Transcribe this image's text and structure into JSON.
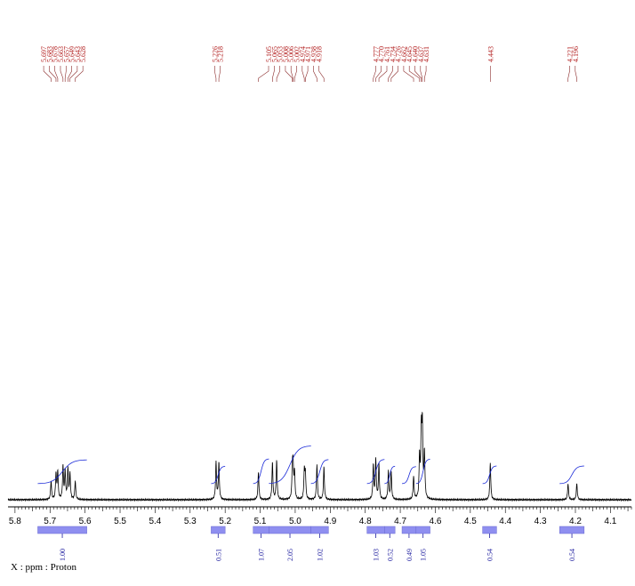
{
  "chart_data": {
    "type": "line",
    "title": "",
    "xlabel": "X : ppm : Proton",
    "ylabel": "",
    "xlim": [
      5.82,
      4.04
    ],
    "x_reversed": true,
    "x_ticks": [
      5.8,
      5.7,
      5.6,
      5.5,
      5.4,
      5.3,
      5.2,
      5.1,
      5.0,
      4.9,
      4.8,
      4.7,
      4.6,
      4.5,
      4.4,
      4.3,
      4.2,
      4.1
    ],
    "x_tick_labels": [
      "5.8",
      "5.7",
      "5.6",
      "5.5",
      "5.4",
      "5.3",
      "5.2",
      "5.1",
      "5.0",
      "4.9",
      "4.8",
      "4.7",
      "4.6",
      "4.5",
      "4.4",
      "4.3",
      "4.2",
      "4.1"
    ],
    "peak_groups": [
      {
        "labels": [
          "5.697",
          "5.683",
          "5.678",
          "5.663",
          "5.657",
          "5.649",
          "5.643",
          "5.628"
        ]
      },
      {
        "labels": [
          "5.226",
          "5.218"
        ]
      },
      {
        "labels": [
          "5.105",
          "5.065",
          "5.053",
          "5.008",
          "5.006",
          "5.002",
          "4.974",
          "4.971",
          "4.938",
          "4.918"
        ]
      },
      {
        "labels": [
          "4.777",
          "4.770",
          "4.761",
          "4.734",
          "4.726",
          "4.662",
          "4.645",
          "4.640",
          "4.637",
          "4.631"
        ]
      },
      {
        "labels": [
          "4.443"
        ]
      },
      {
        "labels": [
          "4.221",
          "4.196"
        ]
      }
    ],
    "signals": [
      {
        "ppm": 5.697,
        "height": 0.08
      },
      {
        "ppm": 5.683,
        "height": 0.11
      },
      {
        "ppm": 5.678,
        "height": 0.12
      },
      {
        "ppm": 5.663,
        "height": 0.14
      },
      {
        "ppm": 5.657,
        "height": 0.12
      },
      {
        "ppm": 5.649,
        "height": 0.13
      },
      {
        "ppm": 5.643,
        "height": 0.11
      },
      {
        "ppm": 5.628,
        "height": 0.08
      },
      {
        "ppm": 5.226,
        "height": 0.16
      },
      {
        "ppm": 5.218,
        "height": 0.16
      },
      {
        "ppm": 5.105,
        "height": 0.12
      },
      {
        "ppm": 5.065,
        "height": 0.16
      },
      {
        "ppm": 5.053,
        "height": 0.17
      },
      {
        "ppm": 5.008,
        "height": 0.13
      },
      {
        "ppm": 5.006,
        "height": 0.12
      },
      {
        "ppm": 5.002,
        "height": 0.11
      },
      {
        "ppm": 4.974,
        "height": 0.12
      },
      {
        "ppm": 4.971,
        "height": 0.11
      },
      {
        "ppm": 4.938,
        "height": 0.15
      },
      {
        "ppm": 4.918,
        "height": 0.14
      },
      {
        "ppm": 4.777,
        "height": 0.15
      },
      {
        "ppm": 4.77,
        "height": 0.17
      },
      {
        "ppm": 4.761,
        "height": 0.15
      },
      {
        "ppm": 4.734,
        "height": 0.12
      },
      {
        "ppm": 4.726,
        "height": 0.12
      },
      {
        "ppm": 4.662,
        "height": 0.1
      },
      {
        "ppm": 4.645,
        "height": 0.18
      },
      {
        "ppm": 4.64,
        "height": 0.28
      },
      {
        "ppm": 4.637,
        "height": 0.3
      },
      {
        "ppm": 4.631,
        "height": 0.2
      },
      {
        "ppm": 4.443,
        "height": 0.16
      },
      {
        "ppm": 4.221,
        "height": 0.07
      },
      {
        "ppm": 4.196,
        "height": 0.07
      }
    ],
    "integrals": [
      {
        "from": 5.735,
        "to": 5.595,
        "value": "1.00"
      },
      {
        "from": 5.24,
        "to": 5.2,
        "value": "0.51"
      },
      {
        "from": 5.12,
        "to": 5.075,
        "value": "1.07"
      },
      {
        "from": 5.075,
        "to": 4.955,
        "value": "2.05"
      },
      {
        "from": 4.955,
        "to": 4.905,
        "value": "1.02"
      },
      {
        "from": 4.795,
        "to": 4.745,
        "value": "1.03"
      },
      {
        "from": 4.745,
        "to": 4.715,
        "value": "0.52"
      },
      {
        "from": 4.695,
        "to": 4.655,
        "value": "0.49"
      },
      {
        "from": 4.655,
        "to": 4.615,
        "value": "1.05"
      },
      {
        "from": 4.465,
        "to": 4.425,
        "value": "0.54"
      },
      {
        "from": 4.245,
        "to": 4.175,
        "value": "0.54"
      }
    ],
    "grid": false,
    "colors": {
      "spectrum": "#000000",
      "integral_curve": "#1a2ad8",
      "integral_bar": "#8f8ff0",
      "peak_label": "#b01818",
      "integral_text": "#2020a0"
    }
  }
}
